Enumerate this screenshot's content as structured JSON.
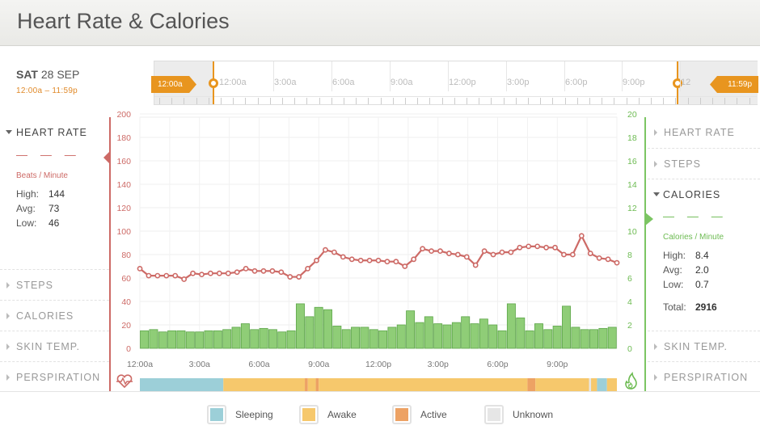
{
  "header": {
    "title": "Heart Rate & Calories"
  },
  "date": {
    "day": "SAT",
    "date": "28 SEP",
    "range": "12:00a – 11:59p"
  },
  "timeline": {
    "labels": [
      "12:00a",
      "3:00a",
      "6:00a",
      "9:00a",
      "12:00p",
      "3:00p",
      "6:00p",
      "9:00p",
      "12"
    ],
    "start_flag": "12:00a",
    "end_flag": "11:59p"
  },
  "left_panel": {
    "active": "HEART RATE",
    "value_placeholder": "— — —",
    "unit": "Beats / Minute",
    "stats": [
      {
        "label": "High:",
        "value": "144"
      },
      {
        "label": "Avg:",
        "value": "73"
      },
      {
        "label": "Low:",
        "value": "46"
      }
    ],
    "items": [
      "STEPS",
      "CALORIES",
      "SKIN TEMP.",
      "PERSPIRATION"
    ]
  },
  "right_panel": {
    "items_above": [
      "HEART RATE",
      "STEPS"
    ],
    "active": "CALORIES",
    "value_placeholder": "— — —",
    "unit": "Calories / Minute",
    "stats": [
      {
        "label": "High:",
        "value": "8.4"
      },
      {
        "label": "Avg:",
        "value": "2.0"
      },
      {
        "label": "Low:",
        "value": "0.7"
      }
    ],
    "total_label": "Total:",
    "total_value": "2916",
    "items_below": [
      "SKIN TEMP.",
      "PERSPIRATION"
    ]
  },
  "legend": [
    {
      "label": "Sleeping",
      "color": "#9ccfd8"
    },
    {
      "label": "Awake",
      "color": "#f6c86c"
    },
    {
      "label": "Active",
      "color": "#eda264"
    },
    {
      "label": "Unknown",
      "color": "#e6e6e6"
    }
  ],
  "colors": {
    "heart": "#cd6a66",
    "calorie_fill": "#8fcd77",
    "calorie_stroke": "#5ea64a",
    "accent": "#e8951f"
  },
  "chart_data": {
    "type": "line",
    "x_tick_labels": [
      "12:00a",
      "3:00a",
      "6:00a",
      "9:00a",
      "12:00p",
      "3:00p",
      "6:00p",
      "9:00p"
    ],
    "left_axis": {
      "ticks": [
        0,
        20,
        40,
        60,
        80,
        100,
        120,
        140,
        160,
        180,
        200
      ],
      "ylim": [
        0,
        200
      ]
    },
    "right_axis": {
      "ticks": [
        0,
        2,
        4,
        6,
        8,
        10,
        12,
        14,
        16,
        18,
        20
      ],
      "ylim": [
        0,
        20
      ]
    },
    "grid": true,
    "heart_rate": [
      68,
      62,
      62,
      62,
      62,
      59,
      64,
      63,
      64,
      64,
      64,
      65,
      68,
      66,
      66,
      66,
      65,
      61,
      61,
      68,
      75,
      84,
      82,
      78,
      76,
      75,
      75,
      75,
      74,
      74,
      70,
      76,
      85,
      83,
      83,
      81,
      80,
      78,
      71,
      83,
      80,
      82,
      82,
      86,
      87,
      87,
      86,
      86,
      80,
      80,
      96,
      81,
      77,
      76,
      73
    ],
    "calories": [
      1.5,
      1.6,
      1.4,
      1.5,
      1.5,
      1.4,
      1.4,
      1.5,
      1.5,
      1.6,
      1.8,
      2.1,
      1.6,
      1.7,
      1.6,
      1.4,
      1.5,
      3.8,
      2.7,
      3.5,
      3.3,
      1.9,
      1.6,
      1.8,
      1.8,
      1.6,
      1.5,
      1.8,
      2.0,
      3.2,
      2.2,
      2.7,
      2.1,
      2.0,
      2.2,
      2.7,
      2.1,
      2.5,
      2.0,
      1.5,
      3.8,
      2.6,
      1.5,
      2.1,
      1.6,
      1.9,
      3.6,
      1.8,
      1.6,
      1.6,
      1.7,
      1.8
    ],
    "activity_band": [
      {
        "state": "Sleeping",
        "from": 0,
        "to": 4.2
      },
      {
        "state": "Awake",
        "from": 4.2,
        "to": 8.3
      },
      {
        "state": "Active",
        "from": 8.3,
        "to": 8.45
      },
      {
        "state": "Awake",
        "from": 8.45,
        "to": 8.85
      },
      {
        "state": "Active",
        "from": 8.85,
        "to": 9.0
      },
      {
        "state": "Awake",
        "from": 9.0,
        "to": 19.5
      },
      {
        "state": "Active",
        "from": 19.5,
        "to": 19.9
      },
      {
        "state": "Awake",
        "from": 19.9,
        "to": 22.6
      },
      {
        "state": "Unknown",
        "from": 22.6,
        "to": 22.7
      },
      {
        "state": "Awake",
        "from": 22.7,
        "to": 23.0
      },
      {
        "state": "Sleeping",
        "from": 23.0,
        "to": 23.5
      },
      {
        "state": "Awake",
        "from": 23.5,
        "to": 24.0
      }
    ]
  }
}
